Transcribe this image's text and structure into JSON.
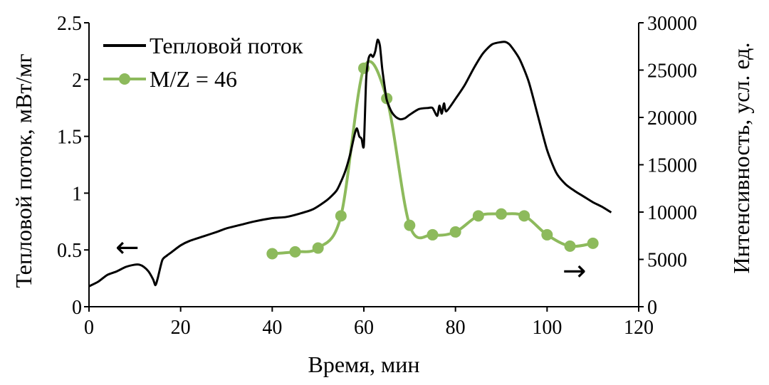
{
  "colors": {
    "heat_flow": "#000000",
    "mz46": "#8dba5c",
    "axis": "#000000"
  },
  "chart_data": {
    "type": "line",
    "xlabel": "Время, мин",
    "ylabel_left": "Тепловой поток, мВт/мг",
    "ylabel_right": "Интенсивность, усл. ед.",
    "xlim": [
      0,
      120
    ],
    "ylim_left": [
      0,
      2.5
    ],
    "ylim_right": [
      0,
      30000
    ],
    "x_ticks": [
      "0",
      "20",
      "40",
      "60",
      "80",
      "100",
      "120"
    ],
    "y_left_ticks": [
      "0",
      "0.5",
      "1",
      "1.5",
      "2",
      "2.5"
    ],
    "y_right_ticks": [
      "0",
      "5000",
      "10000",
      "15000",
      "20000",
      "25000",
      "30000"
    ],
    "grid": false,
    "legend_position": "top-left",
    "arrows": {
      "heat_flow": {
        "direction": "left",
        "glyph": "←"
      },
      "mz46": {
        "direction": "right",
        "glyph": "→"
      }
    },
    "series": [
      {
        "name": "Тепловой поток",
        "axis": "left",
        "marker": "none",
        "x": [
          0,
          2,
          4,
          6,
          8,
          10,
          11,
          12,
          13,
          14,
          14.5,
          15,
          16,
          17,
          18,
          20,
          22,
          25,
          28,
          30,
          33,
          36,
          40,
          43,
          46,
          49,
          52,
          54,
          55,
          56,
          57,
          58,
          58.5,
          59,
          59.5,
          60,
          60.5,
          61,
          61.5,
          62,
          62.5,
          63,
          63.5,
          64,
          64.5,
          65,
          66,
          67,
          68,
          69,
          70,
          72,
          74,
          75,
          76,
          76.5,
          77,
          77.5,
          78,
          80,
          82,
          84,
          86,
          88,
          90,
          91,
          92,
          94,
          96,
          98,
          100,
          102,
          104,
          106,
          108,
          110,
          112,
          114
        ],
        "y": [
          0.18,
          0.22,
          0.28,
          0.31,
          0.35,
          0.37,
          0.37,
          0.35,
          0.31,
          0.24,
          0.19,
          0.25,
          0.41,
          0.45,
          0.48,
          0.54,
          0.58,
          0.62,
          0.66,
          0.69,
          0.72,
          0.75,
          0.78,
          0.79,
          0.82,
          0.86,
          0.94,
          1.02,
          1.1,
          1.2,
          1.34,
          1.52,
          1.57,
          1.5,
          1.48,
          1.42,
          2.0,
          2.18,
          2.22,
          2.2,
          2.25,
          2.35,
          2.3,
          2.1,
          1.95,
          1.82,
          1.72,
          1.67,
          1.65,
          1.66,
          1.69,
          1.74,
          1.75,
          1.75,
          1.68,
          1.77,
          1.7,
          1.79,
          1.72,
          1.83,
          1.95,
          2.1,
          2.23,
          2.31,
          2.33,
          2.33,
          2.3,
          2.18,
          1.98,
          1.68,
          1.38,
          1.18,
          1.08,
          1.02,
          0.97,
          0.92,
          0.88,
          0.83
        ]
      },
      {
        "name": "M/Z = 46",
        "axis": "right",
        "marker": "circle",
        "x": [
          40,
          45,
          50,
          55,
          60,
          65,
          70,
          75,
          80,
          85,
          90,
          95,
          100,
          105,
          110
        ],
        "y": [
          5600,
          5800,
          6200,
          9600,
          25200,
          22000,
          8600,
          7600,
          7900,
          9600,
          9800,
          9600,
          7600,
          6400,
          6700
        ]
      }
    ]
  }
}
